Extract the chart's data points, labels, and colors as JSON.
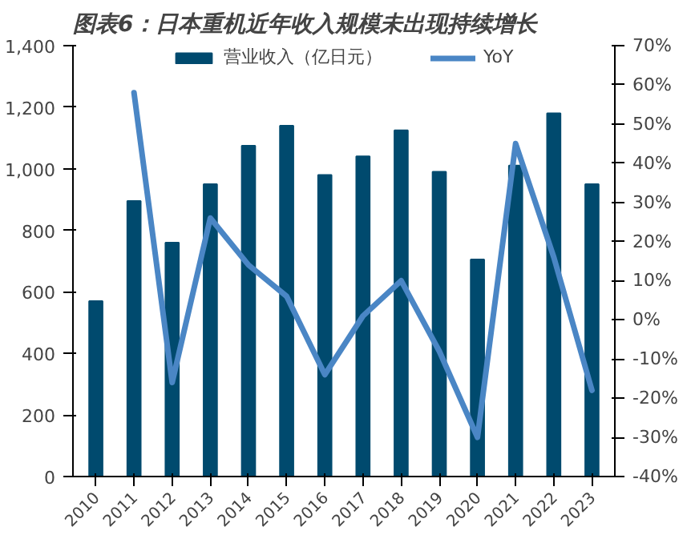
{
  "chart_data": {
    "type": "bar",
    "title": "图表6：日本重机近年收入规模未出现持续增长",
    "categories": [
      "2010",
      "2011",
      "2012",
      "2013",
      "2014",
      "2015",
      "2016",
      "2017",
      "2018",
      "2019",
      "2020",
      "2021",
      "2022",
      "2023"
    ],
    "series": [
      {
        "name": "营业收入（亿日元）",
        "color": "#004a6e",
        "values": [
          570,
          895,
          760,
          950,
          1075,
          1140,
          980,
          1040,
          1125,
          990,
          705,
          1010,
          1180,
          950
        ]
      },
      {
        "name": "YoY",
        "type": "line",
        "axis": "y2",
        "color": "#4a86c5",
        "values": [
          null,
          58,
          -16,
          26,
          14,
          6,
          -14,
          1,
          10,
          -8,
          -30,
          45,
          16,
          -18
        ]
      }
    ],
    "ylim": [
      0,
      1400
    ],
    "yticks": [
      0,
      200,
      400,
      600,
      800,
      {
        "value": 1000,
        "label": "1,000"
      },
      {
        "value": 1200,
        "label": "1,200"
      },
      {
        "value": 1400,
        "label": "1,400"
      }
    ],
    "y2lim": [
      -40,
      70
    ],
    "y2ticks": [
      {
        "value": -40,
        "label": "-40%"
      },
      {
        "value": -30,
        "label": "-30%"
      },
      {
        "value": -20,
        "label": "-20%"
      },
      {
        "value": -10,
        "label": "-10%"
      },
      {
        "value": 0,
        "label": "0%"
      },
      {
        "value": 10,
        "label": "10%"
      },
      {
        "value": 20,
        "label": "20%"
      },
      {
        "value": 30,
        "label": "30%"
      },
      {
        "value": 40,
        "label": "40%"
      },
      {
        "value": 50,
        "label": "50%"
      },
      {
        "value": 60,
        "label": "60%"
      },
      {
        "value": 70,
        "label": "70%"
      }
    ],
    "grid": false,
    "legend": "top",
    "line_style": "solid",
    "marker": "none"
  }
}
